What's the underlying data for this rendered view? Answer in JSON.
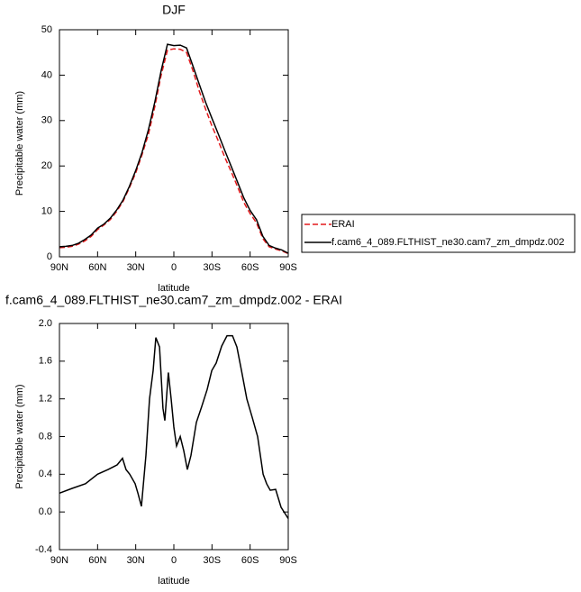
{
  "chart_data": [
    {
      "type": "line",
      "title": "DJF",
      "x_label": "latitude",
      "y_label": "Precipitable water (mm)",
      "x": [
        90,
        85,
        80,
        75,
        70,
        65,
        60,
        55,
        50,
        45,
        40,
        35,
        30,
        25,
        20,
        15,
        10,
        5,
        0,
        -5,
        -10,
        -15,
        -20,
        -25,
        -30,
        -35,
        -40,
        -45,
        -50,
        -55,
        -60,
        -65,
        -70,
        -75,
        -80,
        -85,
        -90
      ],
      "series": [
        {
          "name": "ERAI",
          "color": "#e31a1c",
          "dash": true,
          "values": [
            2.0,
            2.1,
            2.3,
            2.8,
            3.5,
            4.5,
            6.0,
            7.0,
            8.2,
            10,
            12.2,
            15.2,
            18.5,
            22.5,
            27,
            33,
            40,
            45.5,
            45.8,
            45.7,
            45,
            41,
            36.5,
            32.5,
            28.8,
            25.5,
            22,
            18.8,
            15.5,
            12,
            9.5,
            7.5,
            4,
            2.2,
            1.7,
            1.3,
            0.7
          ]
        },
        {
          "name": "f.cam6_4_089.FLTHIST_ne30.cam7_zm_dmpdz.002",
          "color": "#000000",
          "dash": false,
          "values": [
            2.2,
            2.3,
            2.5,
            3.0,
            3.8,
            4.8,
            6.3,
            7.2,
            8.5,
            10.3,
            12.5,
            15.5,
            19,
            23,
            28,
            34,
            41,
            46.8,
            46.5,
            46.6,
            46,
            42,
            38,
            34,
            30.5,
            27,
            23.5,
            20,
            16.5,
            13,
            10.2,
            8.2,
            4.5,
            2.5,
            1.9,
            1.5,
            0.8
          ]
        }
      ],
      "xlim": [
        90,
        -90
      ],
      "xticks": [
        {
          "value": 90,
          "label": "90N"
        },
        {
          "value": 60,
          "label": "60N"
        },
        {
          "value": 30,
          "label": "30N"
        },
        0,
        {
          "value": -30,
          "label": "30S"
        },
        {
          "value": -60,
          "label": "60S"
        },
        {
          "value": -90,
          "label": "90S"
        }
      ],
      "ylim": [
        0,
        50
      ],
      "yticks": [
        0,
        10,
        20,
        30,
        40,
        50
      ],
      "grid": false,
      "legend_position": "right"
    },
    {
      "type": "line",
      "title": "f.cam6_4_089.FLTHIST_ne30.cam7_zm_dmpdz.002 - ERAI",
      "x_label": "latitude",
      "y_label": "Precipitable water (mm)",
      "x": [
        90,
        80,
        69.5,
        60,
        51.7,
        44.6,
        40.4,
        37.6,
        34.7,
        30.5,
        28.3,
        25.5,
        22,
        19.1,
        16.3,
        14.2,
        11.3,
        8.6,
        7.1,
        4.3,
        2.1,
        0,
        -2.1,
        -5,
        -7.8,
        -10.6,
        -13.5,
        -17.7,
        -22,
        -26.2,
        -29.8,
        -33.3,
        -37.6,
        -41.8,
        -46.1,
        -49.6,
        -53.2,
        -57.4,
        -61.7,
        -65.9,
        -70.2,
        -73,
        -75.8,
        -80.1,
        -84.3,
        -90
      ],
      "series": [
        {
          "color": "#000000",
          "dash": false,
          "values": [
            0.2,
            0.25,
            0.3,
            0.4,
            0.45,
            0.5,
            0.57,
            0.45,
            0.4,
            0.3,
            0.2,
            0.06,
            0.6,
            1.2,
            1.5,
            1.85,
            1.75,
            1.1,
            0.97,
            1.48,
            1.2,
            0.9,
            0.7,
            0.8,
            0.65,
            0.45,
            0.6,
            0.95,
            1.12,
            1.3,
            1.5,
            1.58,
            1.76,
            1.87,
            1.87,
            1.75,
            1.5,
            1.2,
            1.0,
            0.8,
            0.4,
            0.3,
            0.23,
            0.24,
            0.05,
            -0.07
          ]
        }
      ],
      "xlim": [
        90,
        -90
      ],
      "xticks": [
        {
          "value": 90,
          "label": "90N"
        },
        {
          "value": 60,
          "label": "60N"
        },
        {
          "value": 30,
          "label": "30N"
        },
        0,
        {
          "value": -30,
          "label": "30S"
        },
        {
          "value": -60,
          "label": "60S"
        },
        {
          "value": -90,
          "label": "90S"
        }
      ],
      "ylim": [
        -0.4,
        2.0
      ],
      "yticks": [
        -0.4,
        {
          "value": 0,
          "label": "0.0"
        },
        0.4,
        0.8,
        1.2,
        1.6,
        {
          "value": 2,
          "label": "2.0"
        }
      ],
      "grid": false
    }
  ]
}
